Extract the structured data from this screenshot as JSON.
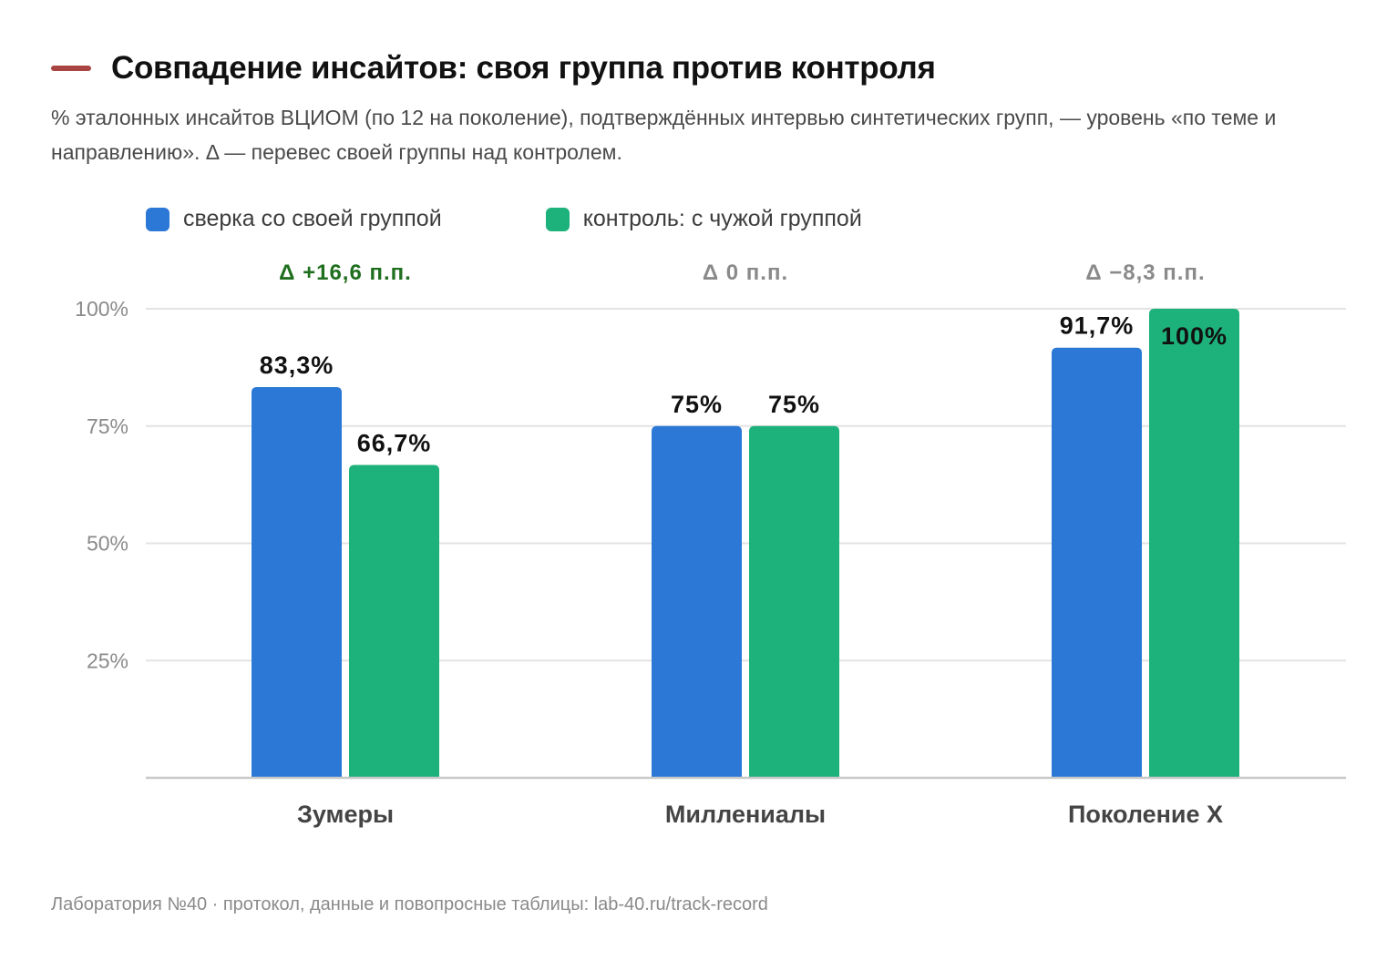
{
  "title": "Совпадение инсайтов: своя группа против контроля",
  "subtitle": "% эталонных инсайтов ВЦИОМ (по 12 на поколение), подтверждённых интервью синтетических групп, — уровень «по теме и направлению». Δ — перевес своей группы над контролем.",
  "footer": "Лаборатория №40 · протокол, данные и повопросные таблицы: lab-40.ru/track-record",
  "colors": {
    "accent": "#a94442",
    "own_group": "#2b78d6",
    "control": "#1db17b",
    "delta_positive": "#1f6f1f",
    "delta_neutral": "#8a8a8a"
  },
  "chart_data": {
    "type": "bar",
    "categories": [
      "Зумеры",
      "Миллениалы",
      "Поколение X"
    ],
    "series": [
      {
        "name": "сверка со своей группой",
        "color": "#2b78d6",
        "values": [
          83.3,
          75,
          91.7
        ],
        "labels": [
          "83,3%",
          "75%",
          "91,7%"
        ]
      },
      {
        "name": "контроль: с чужой группой",
        "color": "#1db17b",
        "values": [
          66.7,
          75,
          100
        ],
        "labels": [
          "66,7%",
          "75%",
          "100%"
        ]
      }
    ],
    "deltas": [
      {
        "label": "Δ +16,6 п.п.",
        "color": "#1f6f1f"
      },
      {
        "label": "Δ 0 п.п.",
        "color": "#8a8a8a"
      },
      {
        "label": "Δ −8,3 п.п.",
        "color": "#8a8a8a"
      }
    ],
    "ylim": [
      0,
      100
    ],
    "yticks": [
      25,
      50,
      75,
      100
    ],
    "ytick_labels": [
      "25%",
      "50%",
      "75%",
      "100%"
    ],
    "grid": true,
    "legend": "top-left"
  }
}
